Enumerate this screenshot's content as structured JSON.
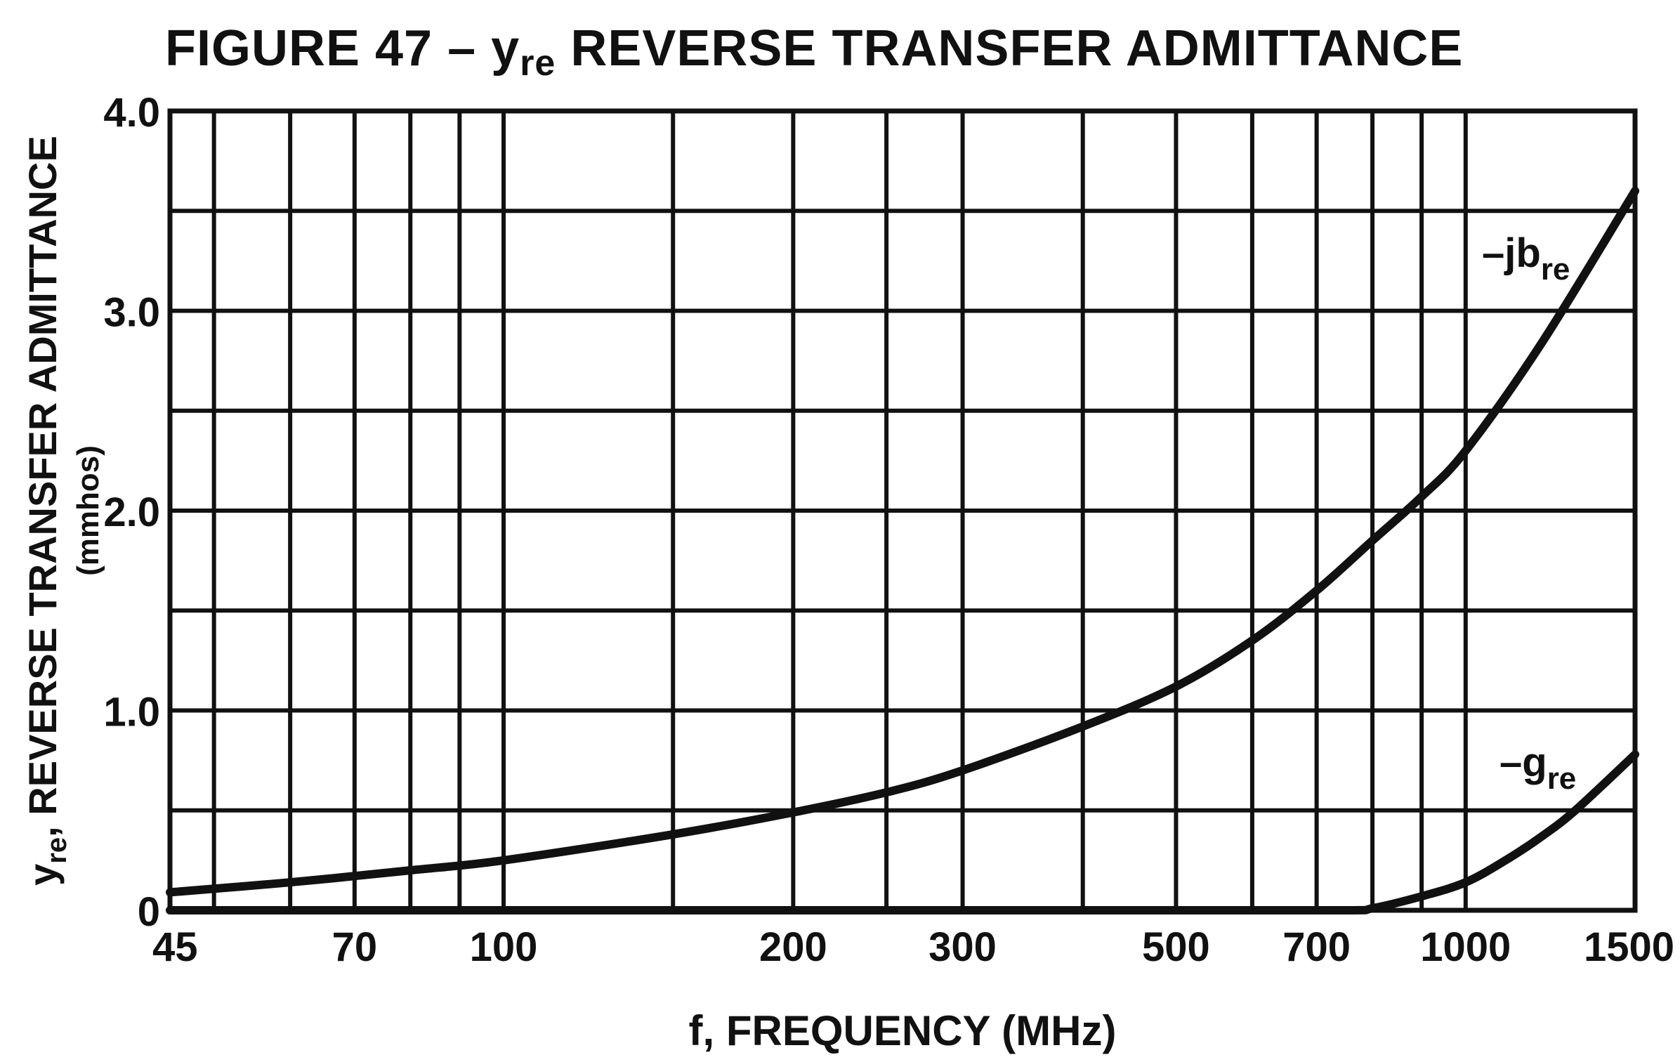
{
  "chart_data": {
    "type": "line",
    "title": {
      "prefix": "FIGURE 47 – y",
      "prefix_sub": "re",
      "suffix": " REVERSE TRANSFER ADMITTANCE"
    },
    "xlabel": "f, FREQUENCY (MHz)",
    "ylabel": {
      "main_prefix": "y",
      "main_sub": "re",
      "main_suffix": ", REVERSE TRANSFER ADMITTANCE",
      "unit": "(mmhos)"
    },
    "x_scale": "log",
    "xlim": [
      45,
      1500
    ],
    "ylim": [
      0,
      4.0
    ],
    "x_ticks": [
      45,
      70,
      100,
      200,
      300,
      500,
      700,
      1000,
      1500
    ],
    "x_tick_labels": [
      "45",
      "70",
      "100",
      "200",
      "300",
      "500",
      "700",
      "1000",
      "1500"
    ],
    "x_gridlines": [
      45,
      50,
      60,
      70,
      80,
      90,
      100,
      150,
      200,
      250,
      300,
      400,
      500,
      600,
      700,
      800,
      900,
      1000,
      1500
    ],
    "y_ticks": [
      0,
      1.0,
      2.0,
      3.0,
      4.0
    ],
    "y_tick_labels": [
      "0",
      "1.0",
      "2.0",
      "3.0",
      "4.0"
    ],
    "y_gridlines": [
      0,
      0.5,
      1.0,
      1.5,
      2.0,
      2.5,
      3.0,
      3.5,
      4.0
    ],
    "grid": true,
    "series": [
      {
        "name": "–jb",
        "name_sub": "re",
        "x": [
          45,
          60,
          80,
          100,
          150,
          200,
          250,
          300,
          400,
          500,
          600,
          700,
          800,
          900,
          1000,
          1200,
          1500
        ],
        "y": [
          0.09,
          0.14,
          0.2,
          0.25,
          0.38,
          0.49,
          0.59,
          0.7,
          0.92,
          1.12,
          1.35,
          1.6,
          1.85,
          2.07,
          2.3,
          2.84,
          3.6
        ]
      },
      {
        "name": "–g",
        "name_sub": "re",
        "x": [
          45,
          100,
          200,
          500,
          750,
          800,
          900,
          1000,
          1100,
          1200,
          1300,
          1500
        ],
        "y": [
          0.0,
          0.0,
          0.0,
          0.0,
          0.0,
          0.01,
          0.07,
          0.14,
          0.25,
          0.37,
          0.5,
          0.78
        ]
      }
    ]
  }
}
